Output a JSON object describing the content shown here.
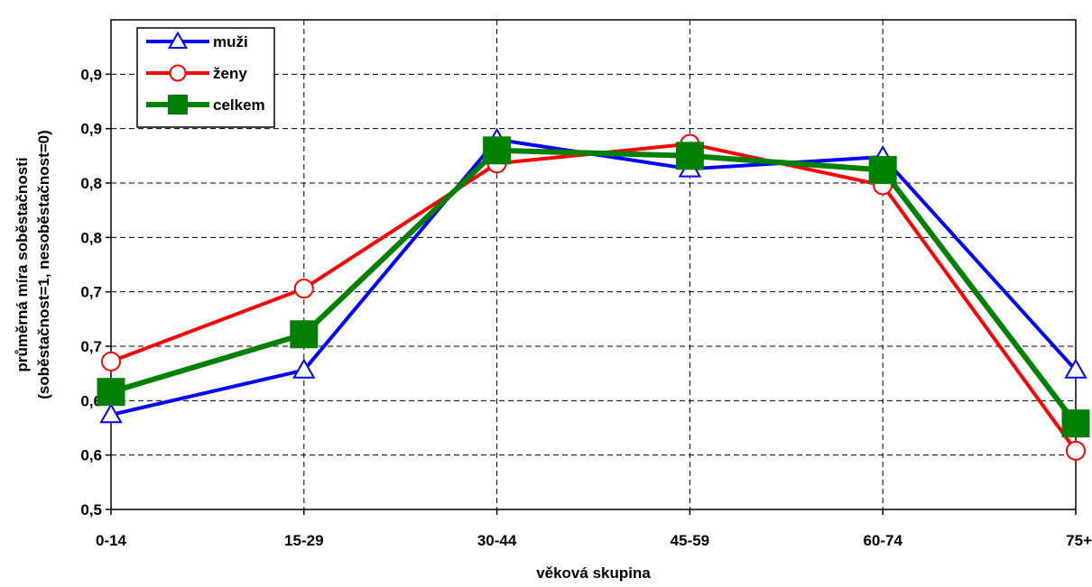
{
  "chart_data": {
    "type": "line",
    "title": "",
    "xlabel": "věková skupina",
    "ylabel_lines": [
      "průměrná míra soběstačnosti",
      "(soběstačnost=1, nesoběstačnost=0)"
    ],
    "categories": [
      "0-14",
      "15-29",
      "30-44",
      "45-59",
      "60-74",
      "75+"
    ],
    "ylim": [
      0.5,
      0.95
    ],
    "y_ticks": [
      {
        "value": 0.5,
        "label": "0,5"
      },
      {
        "value": 0.55,
        "label": "0,6"
      },
      {
        "value": 0.6,
        "label": "0,6"
      },
      {
        "value": 0.65,
        "label": "0,7"
      },
      {
        "value": 0.7,
        "label": "0,7"
      },
      {
        "value": 0.75,
        "label": "0,8"
      },
      {
        "value": 0.8,
        "label": "0,8"
      },
      {
        "value": 0.85,
        "label": "0,9"
      },
      {
        "value": 0.9,
        "label": "0,9"
      }
    ],
    "grid": true,
    "legend_position": "top-left",
    "series": [
      {
        "name": "muži",
        "color": "#0000ff",
        "marker": "triangle",
        "values": [
          0.587,
          0.628,
          0.84,
          0.813,
          0.824,
          0.628
        ]
      },
      {
        "name": "ženy",
        "color": "#ff0000",
        "marker": "circle",
        "values": [
          0.636,
          0.703,
          0.818,
          0.836,
          0.798,
          0.554
        ]
      },
      {
        "name": "celkem",
        "color": "#008000",
        "marker": "square",
        "values": [
          0.608,
          0.661,
          0.83,
          0.825,
          0.812,
          0.579
        ]
      }
    ]
  }
}
